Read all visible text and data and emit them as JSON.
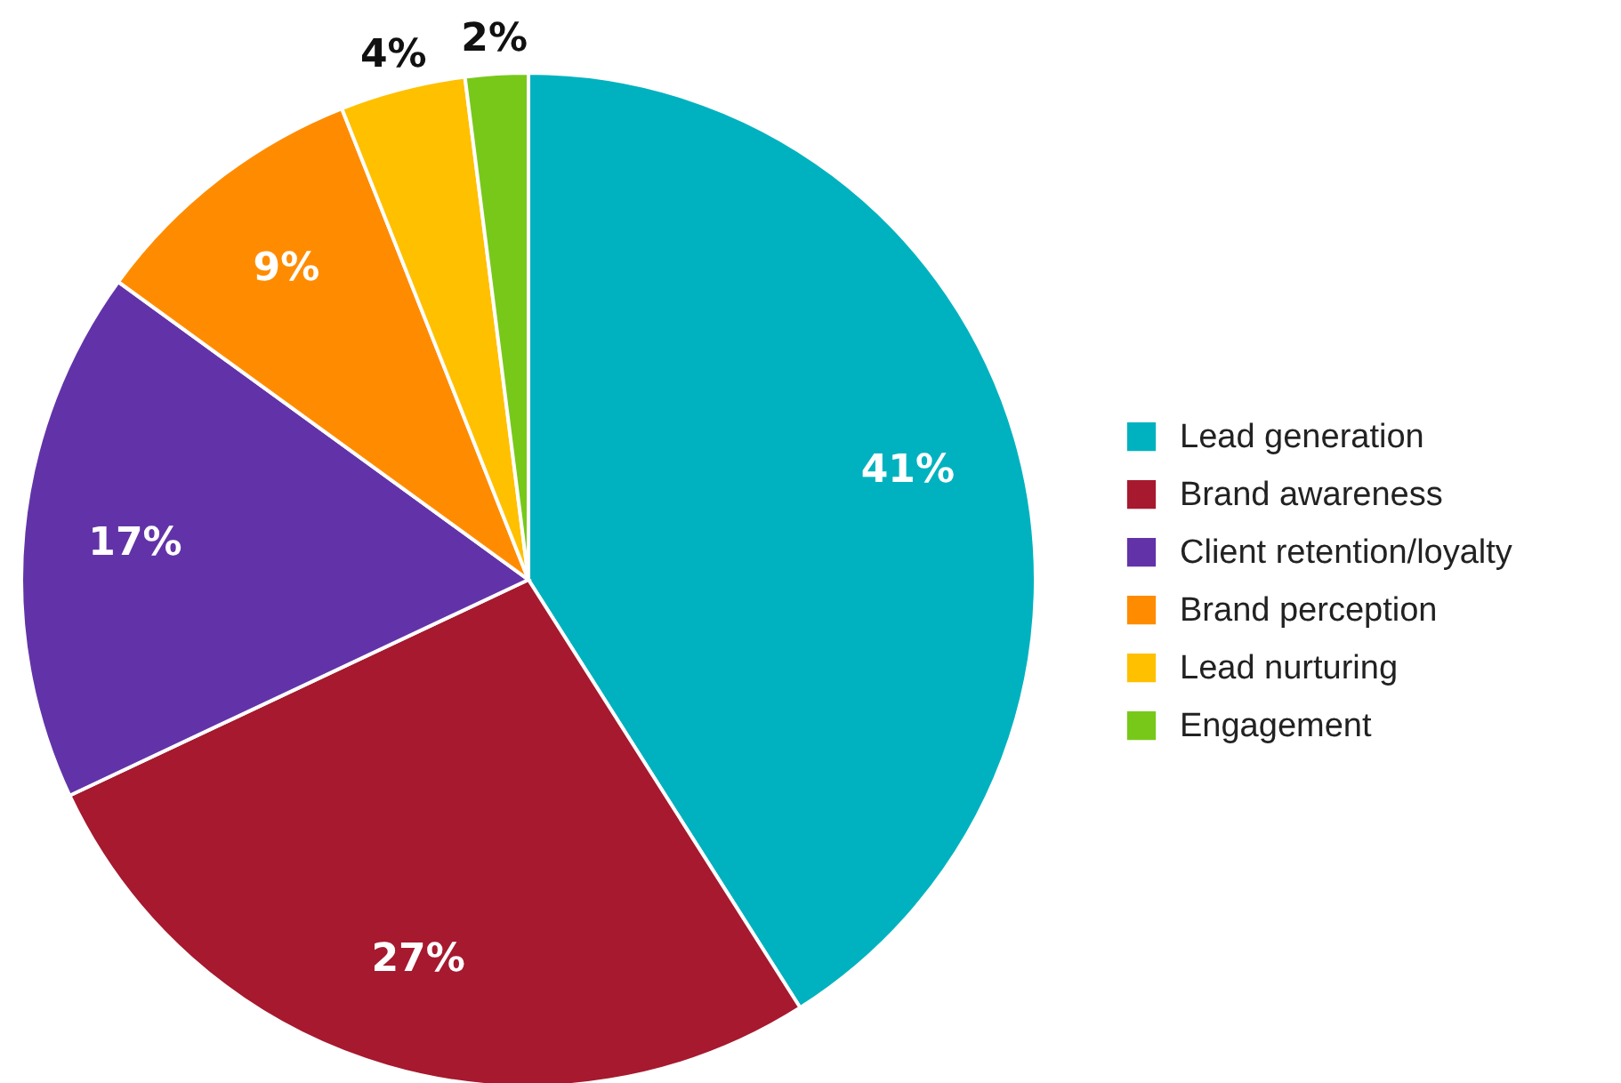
{
  "chart_data": {
    "type": "pie",
    "categories": [
      "Lead generation",
      "Brand awareness",
      "Client retention/loyalty",
      "Brand perception",
      "Lead nurturing",
      "Engagement"
    ],
    "values": [
      41,
      27,
      17,
      9,
      4,
      2
    ],
    "value_labels": [
      "41%",
      "27%",
      "17%",
      "9%",
      "4%",
      "2%"
    ],
    "colors": [
      "#00b2bf",
      "#a6192e",
      "#6233a8",
      "#ff8c00",
      "#ffc000",
      "#78c81a"
    ],
    "legend": "right"
  }
}
